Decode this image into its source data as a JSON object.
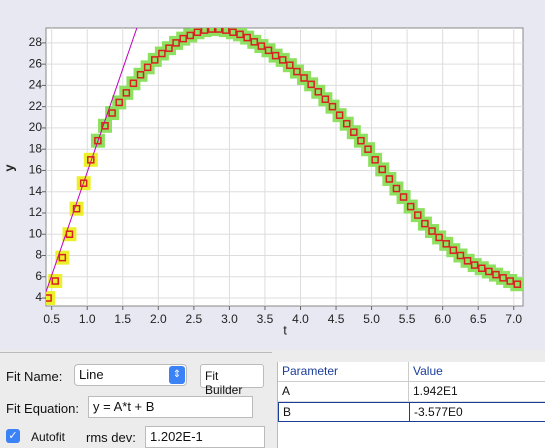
{
  "chart_data": {
    "type": "scatter",
    "x_label": "t",
    "y_label": "y",
    "x": [
      0.45,
      0.55,
      0.65,
      0.75,
      0.85,
      0.95,
      1.05,
      1.15,
      1.25,
      1.35,
      1.45,
      1.55,
      1.65,
      1.75,
      1.85,
      1.95,
      2.05,
      2.15,
      2.25,
      2.35,
      2.45,
      2.55,
      2.65,
      2.75,
      2.85,
      2.95,
      3.05,
      3.15,
      3.25,
      3.35,
      3.45,
      3.55,
      3.65,
      3.75,
      3.85,
      3.95,
      4.05,
      4.15,
      4.25,
      4.35,
      4.45,
      4.55,
      4.65,
      4.75,
      4.85,
      4.95,
      5.05,
      5.15,
      5.25,
      5.35,
      5.45,
      5.55,
      5.65,
      5.75,
      5.85,
      5.95,
      6.05,
      6.15,
      6.25,
      6.35,
      6.45,
      6.55,
      6.65,
      6.75,
      6.85,
      6.95,
      7.05
    ],
    "values": [
      4.0,
      5.6,
      7.8,
      10.0,
      12.4,
      14.8,
      17.0,
      18.8,
      20.2,
      21.4,
      22.4,
      23.3,
      24.2,
      25.0,
      25.7,
      26.4,
      27.0,
      27.5,
      28.0,
      28.4,
      28.7,
      29.0,
      29.2,
      29.3,
      29.3,
      29.2,
      29.0,
      28.8,
      28.5,
      28.1,
      27.7,
      27.3,
      26.8,
      26.4,
      25.9,
      25.3,
      24.7,
      24.1,
      23.4,
      22.7,
      22.0,
      21.2,
      20.4,
      19.6,
      18.8,
      18.0,
      17.0,
      16.1,
      15.2,
      14.3,
      13.5,
      12.6,
      11.8,
      11.0,
      10.3,
      9.7,
      9.1,
      8.5,
      8.0,
      7.5,
      7.1,
      6.8,
      6.5,
      6.2,
      5.9,
      5.6,
      5.3
    ],
    "color": "#d82020",
    "marker_bg": "#8de060",
    "highlight": {
      "color": "#ecf02a",
      "xlim": [
        0.45,
        1.1
      ]
    },
    "fit_color": "#c000c0",
    "xlim": [
      0.42,
      7.13
    ],
    "ylim": [
      3.25,
      29.4
    ],
    "xticks": [
      0.5,
      {
        "value": 1,
        "label": "1.0"
      },
      1.5,
      {
        "value": 2,
        "label": "2.0"
      },
      2.5,
      {
        "value": 3,
        "label": "3.0"
      },
      3.5,
      {
        "value": 4,
        "label": "4.0"
      },
      4.5,
      {
        "value": 5,
        "label": "5.0"
      },
      5.5,
      {
        "value": 6,
        "label": "6.0"
      },
      6.5,
      {
        "value": 7,
        "label": "7.0"
      }
    ],
    "yticks": [
      4,
      6,
      8,
      10,
      12,
      14,
      16,
      18,
      20,
      22,
      24,
      26,
      28
    ],
    "grid": true
  },
  "fit": {
    "name_label": "Fit Name:",
    "name": "Line",
    "builder": "Fit Builder",
    "equation_label": "Fit Equation:",
    "equation": "y = A*t + B",
    "autofit": "Autofit",
    "rms_label": "rms dev:",
    "rms": "1.202E-1"
  },
  "table": {
    "columns": [
      "Parameter",
      "Value"
    ],
    "rows": [
      [
        "A",
        "1.942E1"
      ],
      [
        "B",
        "-3.577E0"
      ]
    ]
  }
}
